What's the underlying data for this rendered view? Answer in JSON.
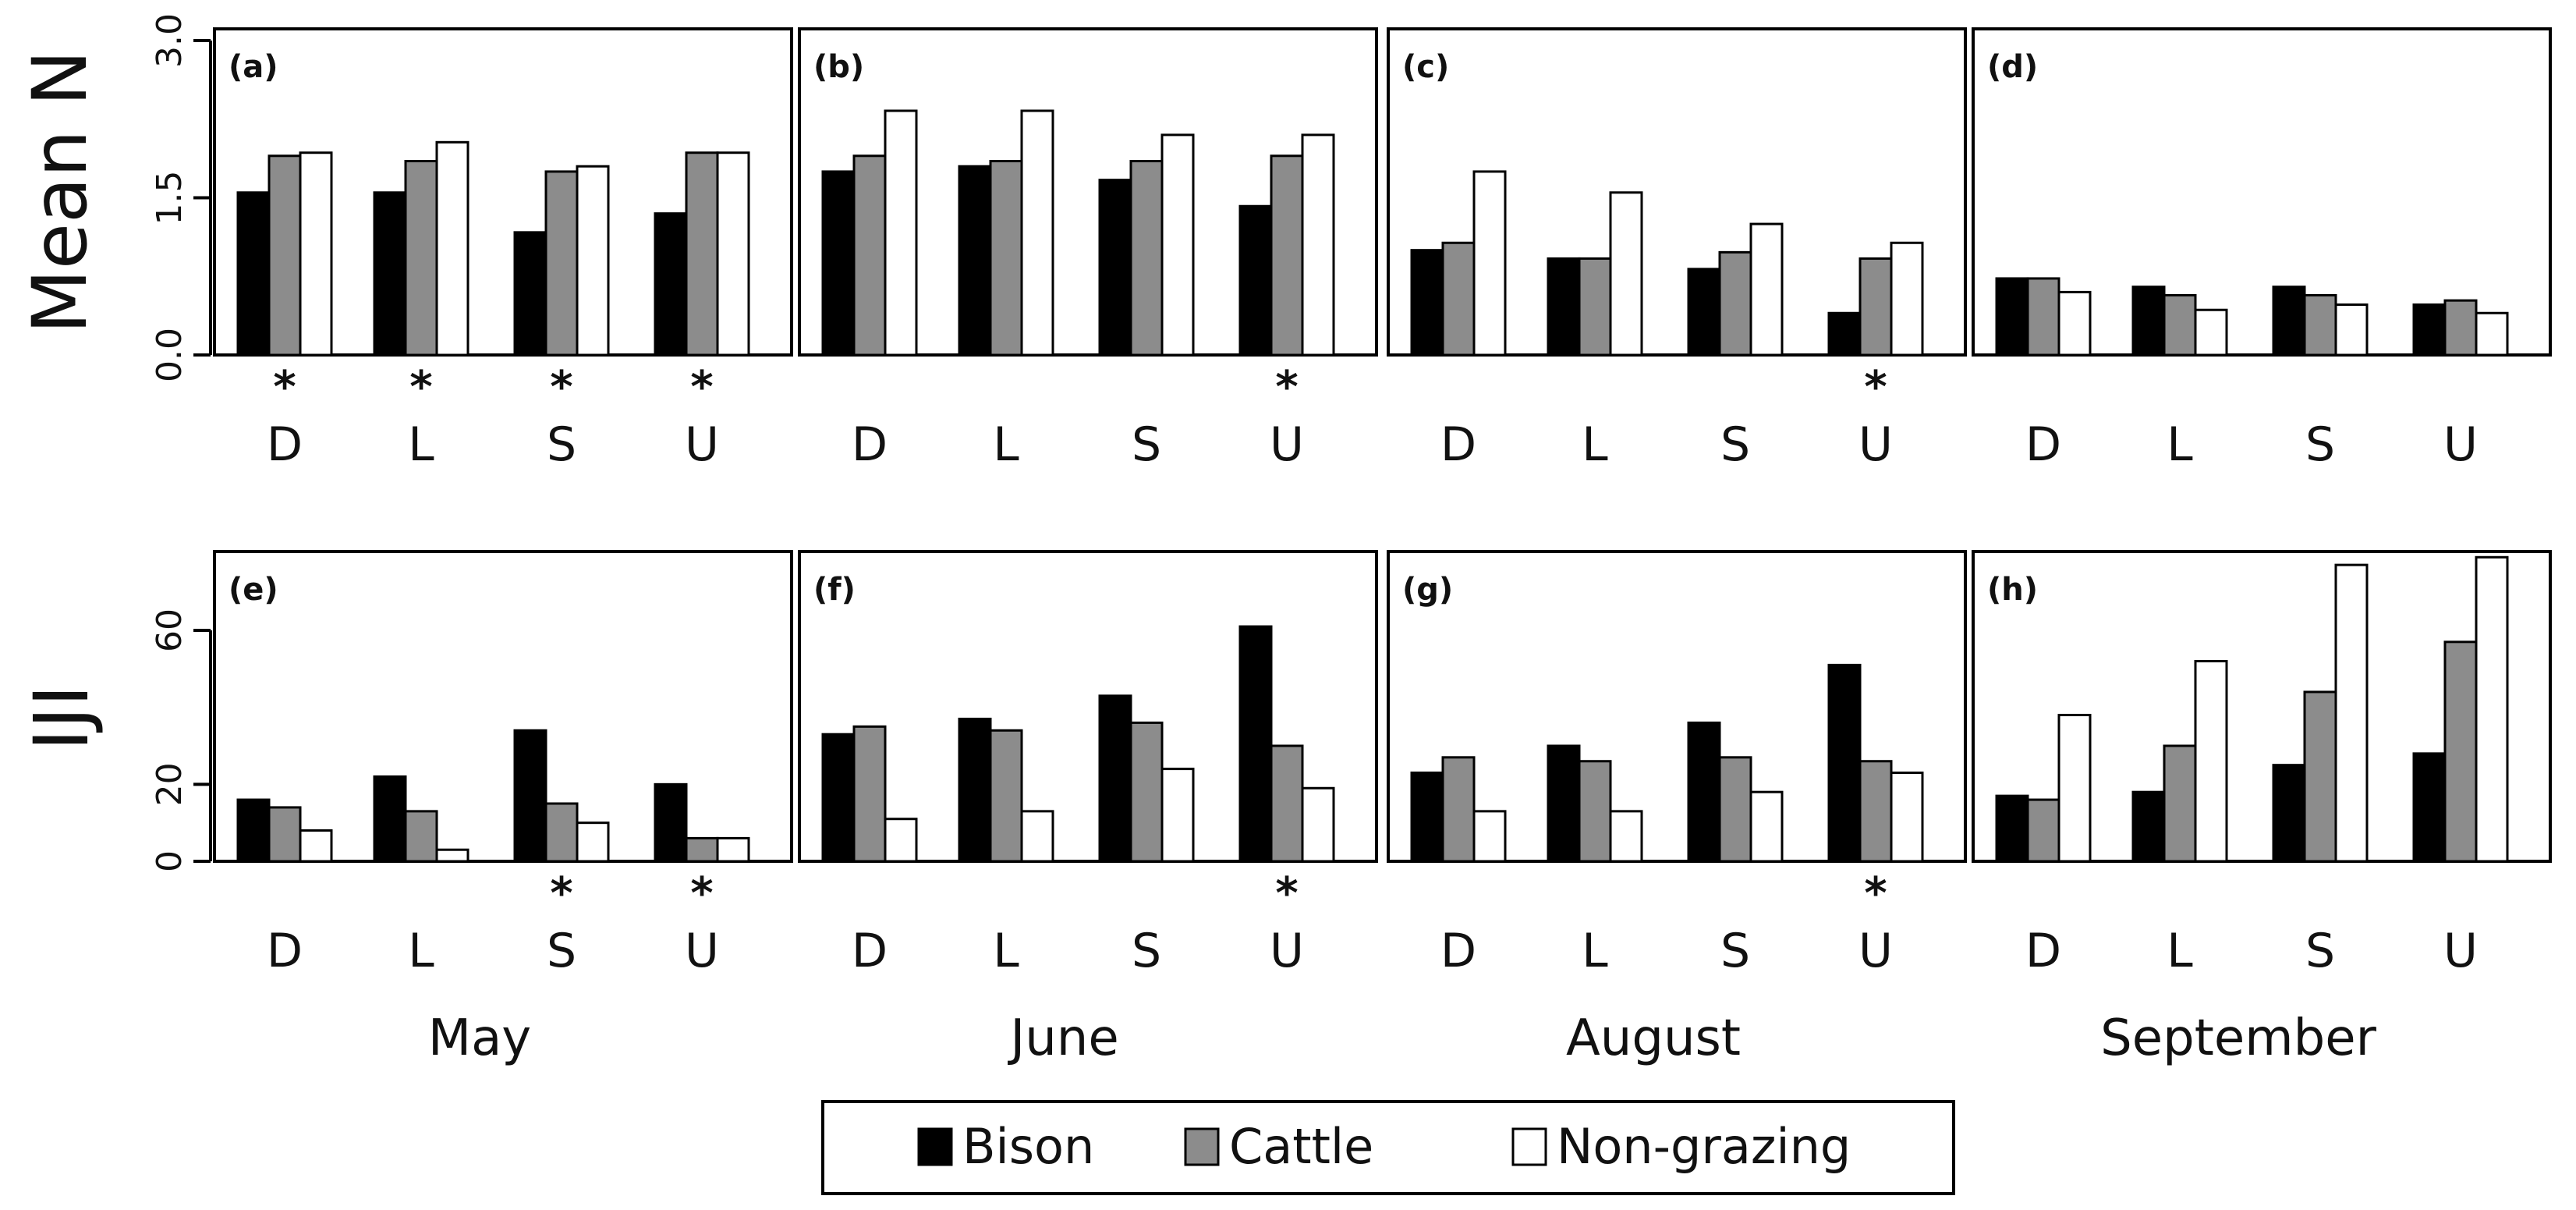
{
  "chart_data": {
    "type": "bar",
    "categories": [
      "D",
      "L",
      "S",
      "U"
    ],
    "legend": {
      "placement": "bottom",
      "items": [
        {
          "label": "Bison",
          "color": "#000000"
        },
        {
          "label": "Cattle",
          "color": "#8c8c8c"
        },
        {
          "label": "Non-grazing",
          "color": "#ffffff"
        }
      ]
    },
    "rows": [
      {
        "ylabel": "Mean N",
        "ylim": [
          0,
          3.0
        ],
        "ticks": [
          "0.0",
          "1.5",
          "3.0"
        ],
        "tick_values": [
          0,
          1.5,
          3.0
        ],
        "tick_rotation": "vertical"
      },
      {
        "ylabel": "IJI",
        "ylim": [
          0,
          80
        ],
        "ticks": [
          "0",
          "20",
          "60"
        ],
        "tick_values": [
          0,
          20,
          60
        ],
        "tick_rotation": "vertical"
      }
    ],
    "columns": [
      "May",
      "June",
      "August",
      "September"
    ],
    "panels": [
      {
        "tag": "(a)",
        "row": 0,
        "col": 0,
        "series": [
          {
            "name": "Bison",
            "values": [
              1.55,
              1.55,
              1.17,
              1.35
            ]
          },
          {
            "name": "Cattle",
            "values": [
              1.9,
              1.85,
              1.75,
              1.93
            ]
          },
          {
            "name": "Non-grazing",
            "values": [
              1.93,
              2.03,
              1.8,
              1.93
            ]
          }
        ],
        "significant": [
          true,
          true,
          true,
          true
        ]
      },
      {
        "tag": "(b)",
        "row": 0,
        "col": 1,
        "series": [
          {
            "name": "Bison",
            "values": [
              1.75,
              1.8,
              1.67,
              1.42
            ]
          },
          {
            "name": "Cattle",
            "values": [
              1.9,
              1.85,
              1.85,
              1.9
            ]
          },
          {
            "name": "Non-grazing",
            "values": [
              2.33,
              2.33,
              2.1,
              2.1
            ]
          }
        ],
        "significant": [
          false,
          false,
          false,
          true
        ]
      },
      {
        "tag": "(c)",
        "row": 0,
        "col": 2,
        "series": [
          {
            "name": "Bison",
            "values": [
              1.0,
              0.92,
              0.82,
              0.4
            ]
          },
          {
            "name": "Cattle",
            "values": [
              1.07,
              0.92,
              0.98,
              0.92
            ]
          },
          {
            "name": "Non-grazing",
            "values": [
              1.75,
              1.55,
              1.25,
              1.07
            ]
          }
        ],
        "significant": [
          false,
          false,
          false,
          true
        ]
      },
      {
        "tag": "(d)",
        "row": 0,
        "col": 3,
        "series": [
          {
            "name": "Bison",
            "values": [
              0.73,
              0.65,
              0.65,
              0.48
            ]
          },
          {
            "name": "Cattle",
            "values": [
              0.73,
              0.57,
              0.57,
              0.52
            ]
          },
          {
            "name": "Non-grazing",
            "values": [
              0.6,
              0.43,
              0.48,
              0.4
            ]
          }
        ],
        "significant": [
          false,
          false,
          false,
          false
        ]
      },
      {
        "tag": "(e)",
        "row": 1,
        "col": 0,
        "series": [
          {
            "name": "Bison",
            "values": [
              16,
              22,
              34,
              20
            ]
          },
          {
            "name": "Cattle",
            "values": [
              14,
              13,
              15,
              6
            ]
          },
          {
            "name": "Non-grazing",
            "values": [
              8,
              3,
              10,
              6
            ]
          }
        ],
        "significant": [
          false,
          false,
          true,
          true
        ]
      },
      {
        "tag": "(f)",
        "row": 1,
        "col": 1,
        "series": [
          {
            "name": "Bison",
            "values": [
              33,
              37,
              43,
              61
            ]
          },
          {
            "name": "Cattle",
            "values": [
              35,
              34,
              36,
              30
            ]
          },
          {
            "name": "Non-grazing",
            "values": [
              11,
              13,
              24,
              19
            ]
          }
        ],
        "significant": [
          false,
          false,
          false,
          true
        ]
      },
      {
        "tag": "(g)",
        "row": 1,
        "col": 2,
        "series": [
          {
            "name": "Bison",
            "values": [
              23,
              30,
              36,
              51
            ]
          },
          {
            "name": "Cattle",
            "values": [
              27,
              26,
              27,
              26
            ]
          },
          {
            "name": "Non-grazing",
            "values": [
              13,
              13,
              18,
              23
            ]
          }
        ],
        "significant": [
          false,
          false,
          false,
          true
        ]
      },
      {
        "tag": "(h)",
        "row": 1,
        "col": 3,
        "series": [
          {
            "name": "Bison",
            "values": [
              17,
              18,
              25,
              28
            ]
          },
          {
            "name": "Cattle",
            "values": [
              16,
              30,
              44,
              57
            ]
          },
          {
            "name": "Non-grazing",
            "values": [
              38,
              52,
              77,
              79
            ]
          }
        ],
        "significant": [
          false,
          false,
          false,
          false
        ]
      }
    ],
    "significance_marker": "*",
    "grid": false
  }
}
